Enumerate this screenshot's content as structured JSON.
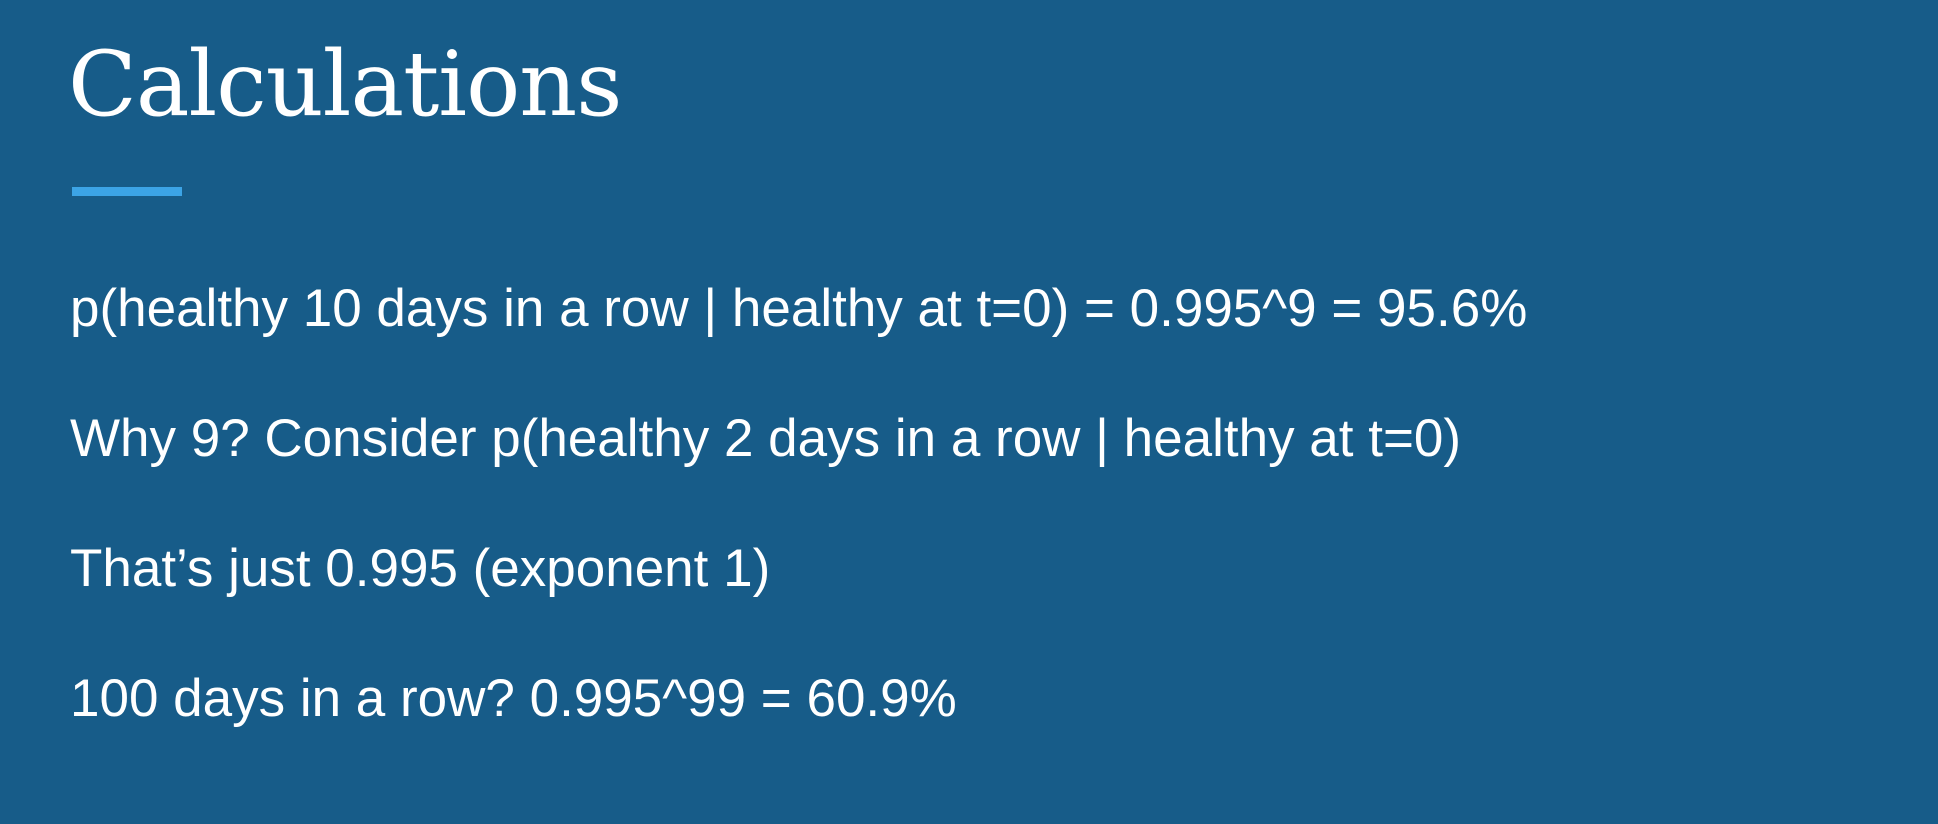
{
  "slide": {
    "title": "Calculations",
    "accent_color": "#3ca4e6",
    "background_color": "#175c89",
    "lines": [
      "p(healthy 10 days in a row | healthy at t=0) = 0.995^9 = 95.6%",
      "Why 9? Consider p(healthy 2 days in a row | healthy at t=0)",
      "That’s just 0.995 (exponent 1)",
      "100 days in a row? 0.995^99 = 60.9%"
    ]
  }
}
